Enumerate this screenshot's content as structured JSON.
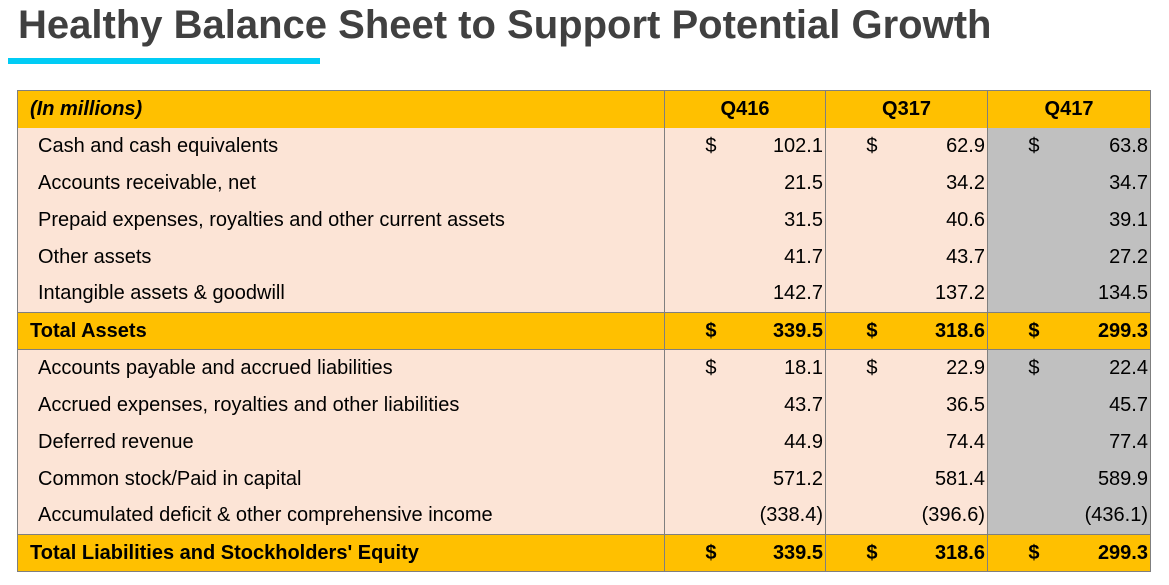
{
  "title": "Healthy Balance Sheet to Support Potential Growth",
  "colors": {
    "accent_line": "#00ccf5",
    "header_bg": "#ffc000",
    "row_bg": "#fce4d6",
    "highlight_bg": "#c0c0c0"
  },
  "table": {
    "unit_label": "(In millions)",
    "columns": [
      "Q416",
      "Q317",
      "Q417"
    ],
    "rows": [
      {
        "label": "Cash and cash equivalents",
        "type": "item",
        "currency": [
          "$",
          "$",
          "$"
        ],
        "values": [
          "102.1",
          "62.9",
          "63.8"
        ]
      },
      {
        "label": "Accounts receivable, net",
        "type": "item",
        "currency": [
          "",
          "",
          ""
        ],
        "values": [
          "21.5",
          "34.2",
          "34.7"
        ]
      },
      {
        "label": "Prepaid expenses, royalties and other current assets",
        "type": "item",
        "currency": [
          "",
          "",
          ""
        ],
        "values": [
          "31.5",
          "40.6",
          "39.1"
        ]
      },
      {
        "label": "Other assets",
        "type": "item",
        "currency": [
          "",
          "",
          ""
        ],
        "values": [
          "41.7",
          "43.7",
          "27.2"
        ]
      },
      {
        "label": "Intangible assets & goodwill",
        "type": "item",
        "currency": [
          "",
          "",
          ""
        ],
        "values": [
          "142.7",
          "137.2",
          "134.5"
        ]
      },
      {
        "label": "Total Assets",
        "type": "total",
        "currency": [
          "$",
          "$",
          "$"
        ],
        "values": [
          "339.5",
          "318.6",
          "299.3"
        ]
      },
      {
        "label": "Accounts payable and accrued liabilities",
        "type": "item",
        "currency": [
          "$",
          "$",
          "$"
        ],
        "values": [
          "18.1",
          "22.9",
          "22.4"
        ]
      },
      {
        "label": "Accrued expenses, royalties and other liabilities",
        "type": "item",
        "currency": [
          "",
          "",
          ""
        ],
        "values": [
          "43.7",
          "36.5",
          "45.7"
        ]
      },
      {
        "label": "Deferred revenue",
        "type": "item",
        "currency": [
          "",
          "",
          ""
        ],
        "values": [
          "44.9",
          "74.4",
          "77.4"
        ]
      },
      {
        "label": "Common stock/Paid in capital",
        "type": "item",
        "currency": [
          "",
          "",
          ""
        ],
        "values": [
          "571.2",
          "581.4",
          "589.9"
        ]
      },
      {
        "label": "Accumulated deficit & other comprehensive income",
        "type": "item",
        "currency": [
          "",
          "",
          ""
        ],
        "values": [
          "(338.4)",
          "(396.6)",
          "(436.1)"
        ]
      },
      {
        "label": "Total Liabilities and Stockholders' Equity",
        "type": "total",
        "currency": [
          "$",
          "$",
          "$"
        ],
        "values": [
          "339.5",
          "318.6",
          "299.3"
        ]
      }
    ]
  }
}
